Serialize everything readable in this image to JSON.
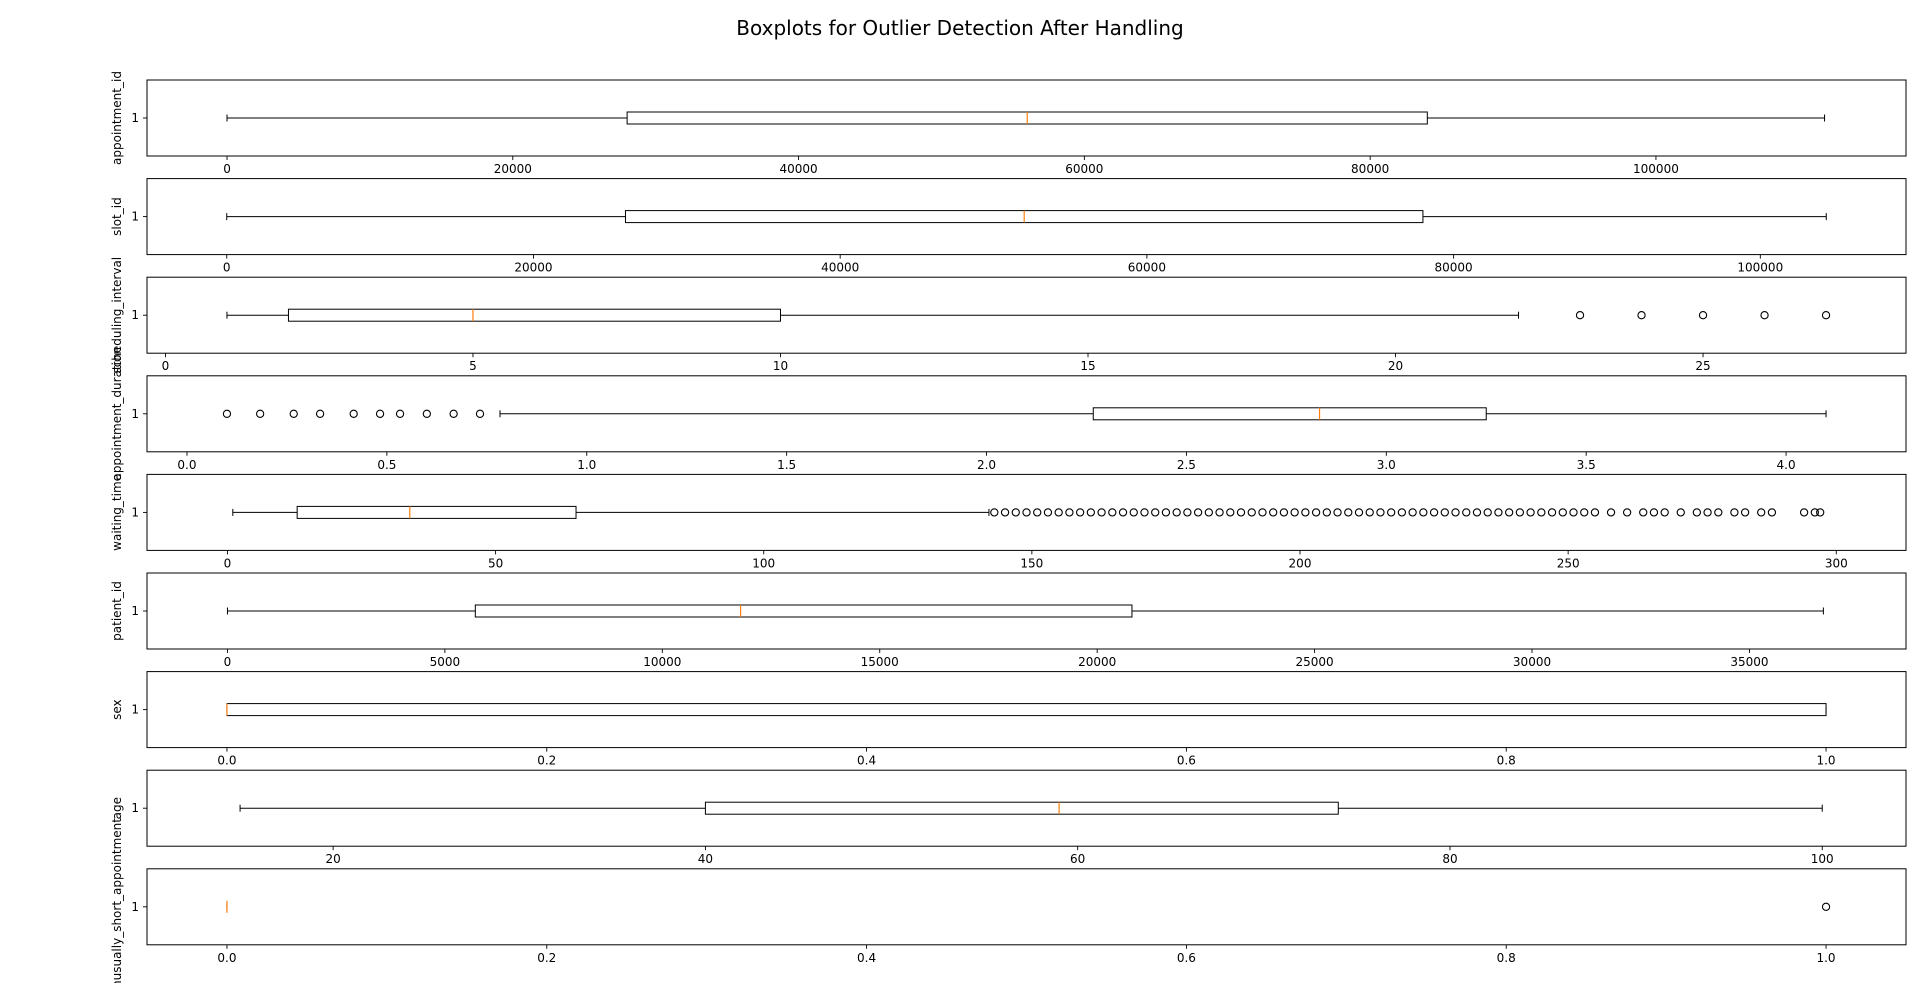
{
  "chart_data": {
    "type": "boxplot",
    "title": "Boxplots for Outlier Detection After Handling",
    "orientation": "horizontal",
    "y_tick_label": "1",
    "colors": {
      "box": "#000000",
      "median": "#ff7f0e",
      "whisker": "#000000",
      "flier": "#000000",
      "background": "#ffffff"
    },
    "panels": [
      {
        "ylabel": "appointment_id",
        "xlim": [
          -5600,
          117500
        ],
        "xticks": [
          0,
          20000,
          40000,
          60000,
          80000,
          100000
        ],
        "xtick_labels": [
          "0",
          "20000",
          "40000",
          "60000",
          "80000",
          "100000"
        ],
        "whisker_low": 0,
        "q1": 28000,
        "median": 56000,
        "q3": 84000,
        "whisker_high": 111800,
        "outliers": []
      },
      {
        "ylabel": "slot_id",
        "xlim": [
          -5200,
          109500
        ],
        "xticks": [
          0,
          20000,
          40000,
          60000,
          80000,
          100000
        ],
        "xtick_labels": [
          "0",
          "20000",
          "40000",
          "60000",
          "80000",
          "100000"
        ],
        "whisker_low": 0,
        "q1": 26000,
        "median": 52000,
        "q3": 78000,
        "whisker_high": 104300,
        "outliers": []
      },
      {
        "ylabel": "scheduling_interval",
        "xlim": [
          -0.3,
          28.3
        ],
        "xticks": [
          0,
          5,
          10,
          15,
          20,
          25
        ],
        "xtick_labels": [
          "0",
          "5",
          "10",
          "15",
          "20",
          "25"
        ],
        "whisker_low": 1,
        "q1": 2,
        "median": 5,
        "q3": 10,
        "whisker_high": 22,
        "outliers": [
          23,
          24,
          25,
          26,
          27
        ]
      },
      {
        "ylabel": "appointment_duration",
        "xlim": [
          -0.1,
          4.3
        ],
        "xticks": [
          0.0,
          0.5,
          1.0,
          1.5,
          2.0,
          2.5,
          3.0,
          3.5,
          4.0
        ],
        "xtick_labels": [
          "0.0",
          "0.5",
          "1.0",
          "1.5",
          "2.0",
          "2.5",
          "3.0",
          "3.5",
          "4.0"
        ],
        "whisker_low": 0.783,
        "q1": 2.267,
        "median": 2.833,
        "q3": 3.25,
        "whisker_high": 4.1,
        "outliers": [
          0.1,
          0.183,
          0.267,
          0.333,
          0.417,
          0.483,
          0.533,
          0.6,
          0.667,
          0.733
        ]
      },
      {
        "ylabel": "waiting_time",
        "xlim": [
          -15,
          313
        ],
        "xticks": [
          0,
          50,
          100,
          150,
          200,
          250,
          300
        ],
        "xtick_labels": [
          "0",
          "50",
          "100",
          "150",
          "200",
          "250",
          "300"
        ],
        "whisker_low": 1,
        "q1": 13,
        "median": 34,
        "q3": 65,
        "whisker_high": 142,
        "outliers": [
          143,
          145,
          147,
          149,
          151,
          153,
          155,
          157,
          159,
          161,
          163,
          165,
          167,
          169,
          171,
          173,
          175,
          177,
          179,
          181,
          183,
          185,
          187,
          189,
          191,
          193,
          195,
          197,
          199,
          201,
          203,
          205,
          207,
          209,
          211,
          213,
          215,
          217,
          219,
          221,
          223,
          225,
          227,
          229,
          231,
          233,
          235,
          237,
          239,
          241,
          243,
          245,
          247,
          249,
          251,
          253,
          255,
          258,
          261,
          264,
          266,
          268,
          271,
          274,
          276,
          278,
          281,
          283,
          286,
          288,
          294,
          296,
          297
        ]
      },
      {
        "ylabel": "patient_id",
        "xlim": [
          -1850,
          38600
        ],
        "xticks": [
          0,
          5000,
          10000,
          15000,
          20000,
          25000,
          30000,
          35000
        ],
        "xtick_labels": [
          "0",
          "5000",
          "10000",
          "15000",
          "20000",
          "25000",
          "30000",
          "35000"
        ],
        "whisker_low": 0,
        "q1": 5700,
        "median": 11800,
        "q3": 20800,
        "whisker_high": 36700,
        "outliers": []
      },
      {
        "ylabel": "sex",
        "xlim": [
          -0.05,
          1.05
        ],
        "xticks": [
          0.0,
          0.2,
          0.4,
          0.6,
          0.8,
          1.0
        ],
        "xtick_labels": [
          "0.0",
          "0.2",
          "0.4",
          "0.6",
          "0.8",
          "1.0"
        ],
        "whisker_low": 0,
        "q1": 0,
        "median": 0,
        "q3": 1,
        "whisker_high": 1,
        "outliers": []
      },
      {
        "ylabel": "age",
        "xlim": [
          10,
          104.5
        ],
        "xticks": [
          20,
          40,
          60,
          80,
          100
        ],
        "xtick_labels": [
          "20",
          "40",
          "60",
          "80",
          "100"
        ],
        "whisker_low": 15,
        "q1": 40,
        "median": 59,
        "q3": 74,
        "whisker_high": 100,
        "outliers": []
      },
      {
        "ylabel": "unusually_short_appointment",
        "xlim": [
          -0.05,
          1.05
        ],
        "xticks": [
          0.0,
          0.2,
          0.4,
          0.6,
          0.8,
          1.0
        ],
        "xtick_labels": [
          "0.0",
          "0.2",
          "0.4",
          "0.6",
          "0.8",
          "1.0"
        ],
        "whisker_low": 0,
        "q1": 0,
        "median": 0,
        "q3": 0,
        "whisker_high": 0,
        "outliers": [
          1
        ]
      }
    ]
  }
}
